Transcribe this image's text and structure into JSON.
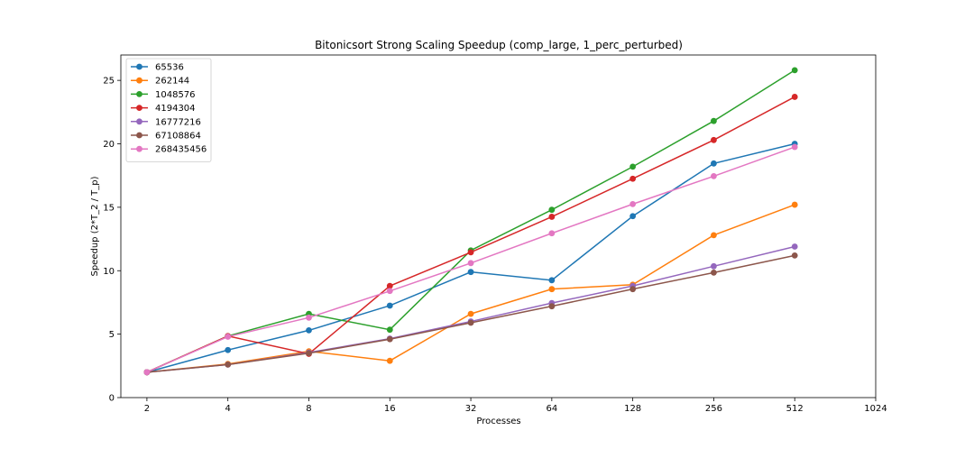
{
  "chart_data": {
    "type": "line",
    "title": "Bitonicsort Strong Scaling Speedup (comp_large, 1_perc_perturbed)",
    "xlabel": "Processes",
    "ylabel": "Speedup (2*T_2 / T_p)",
    "x_scale": "log2",
    "x": [
      2,
      4,
      8,
      16,
      32,
      64,
      128,
      256,
      512
    ],
    "x_ticks": [
      "2",
      "4",
      "8",
      "16",
      "32",
      "64",
      "128",
      "256",
      "512",
      "1024"
    ],
    "x_tick_values": [
      2,
      4,
      8,
      16,
      32,
      64,
      128,
      256,
      512,
      1024
    ],
    "y_ticks": [
      "0",
      "5",
      "10",
      "15",
      "20",
      "25"
    ],
    "y_tick_values": [
      0,
      5,
      10,
      15,
      20,
      25
    ],
    "xlim": [
      1.6,
      1024
    ],
    "ylim": [
      0,
      27
    ],
    "grid": false,
    "legend_position": "top-left",
    "series": [
      {
        "name": "65536",
        "color": "#1f77b4",
        "values": [
          2.0,
          3.75,
          5.3,
          7.25,
          9.9,
          9.25,
          14.3,
          18.45,
          20.0
        ]
      },
      {
        "name": "262144",
        "color": "#ff7f0e",
        "values": [
          2.0,
          2.65,
          3.65,
          2.9,
          6.6,
          8.55,
          8.9,
          12.8,
          15.2
        ]
      },
      {
        "name": "1048576",
        "color": "#2ca02c",
        "values": [
          2.0,
          4.85,
          6.6,
          5.35,
          11.6,
          14.8,
          18.2,
          21.8,
          25.8
        ]
      },
      {
        "name": "4194304",
        "color": "#d62728",
        "values": [
          2.0,
          4.85,
          3.45,
          8.8,
          11.45,
          14.25,
          17.25,
          20.3,
          23.7
        ]
      },
      {
        "name": "16777216",
        "color": "#9467bd",
        "values": [
          2.0,
          2.6,
          3.55,
          4.65,
          6.0,
          7.45,
          8.8,
          10.35,
          11.9
        ]
      },
      {
        "name": "67108864",
        "color": "#8c564b",
        "values": [
          2.0,
          2.6,
          3.5,
          4.6,
          5.9,
          7.2,
          8.55,
          9.85,
          11.2
        ]
      },
      {
        "name": "268435456",
        "color": "#e377c2",
        "values": [
          2.0,
          4.8,
          6.3,
          8.4,
          10.6,
          12.95,
          15.25,
          17.45,
          19.75
        ]
      }
    ]
  }
}
